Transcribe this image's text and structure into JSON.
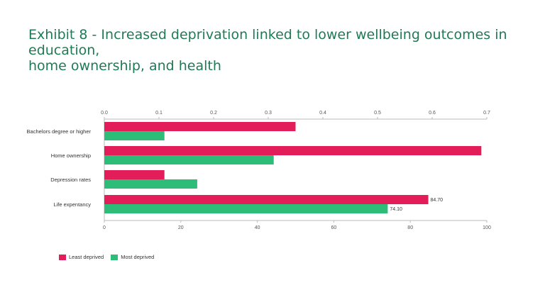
{
  "title_lines": [
    "Exhibit 8 - Increased deprivation linked to lower wellbeing outcomes in education,",
    "home ownership, and health"
  ],
  "colors": {
    "title": "#1f7a56",
    "least": "#e31c5a",
    "most": "#2dbd78"
  },
  "chart_data": {
    "type": "bar",
    "orientation": "horizontal",
    "categories": [
      "Bachelors degree or higher",
      "Home ownership",
      "Depression rates",
      "Life expentancy"
    ],
    "series": [
      {
        "name": "Least deprived",
        "axis": "mixed",
        "values": [
          0.35,
          0.69,
          0.11,
          84.7
        ]
      },
      {
        "name": "Most deprived",
        "axis": "mixed",
        "values": [
          0.11,
          0.31,
          0.17,
          74.1
        ]
      }
    ],
    "note": "Bachelors, Home ownership and Depression rows use the top axis (0-0.7); Life expentancy uses the bottom axis (0-100).",
    "top_axis": {
      "ticks": [
        "0.0",
        "0.1",
        "0.2",
        "0.3",
        "0.4",
        "0.5",
        "0.6",
        "0.7"
      ],
      "range": [
        0,
        0.7
      ]
    },
    "bottom_axis": {
      "ticks": [
        "0",
        "20",
        "40",
        "60",
        "80",
        "100"
      ],
      "range": [
        0,
        100
      ]
    },
    "data_labels": {
      "Life expentancy": [
        "84.70",
        "74.10"
      ]
    },
    "legend": [
      "Least deprived",
      "Most deprived"
    ],
    "legend_position": "bottom-left"
  }
}
